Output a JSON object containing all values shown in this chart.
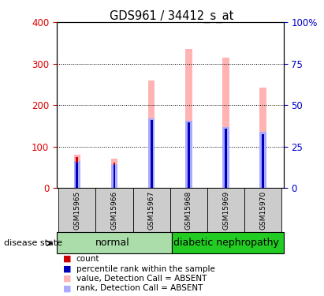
{
  "title": "GDS961 / 34412_s_at",
  "samples": [
    "GSM15965",
    "GSM15966",
    "GSM15967",
    "GSM15968",
    "GSM15969",
    "GSM15970"
  ],
  "value_absent": [
    80,
    70,
    260,
    335,
    315,
    243
  ],
  "rank_absent": [
    65,
    58,
    168,
    162,
    147,
    135
  ],
  "count_values": [
    75,
    62,
    3,
    5,
    5,
    5
  ],
  "percentile_values": [
    62,
    55,
    165,
    158,
    143,
    130
  ],
  "left_ylim": [
    0,
    400
  ],
  "right_ylim": [
    0,
    100
  ],
  "left_yticks": [
    0,
    100,
    200,
    300,
    400
  ],
  "right_yticks": [
    0,
    25,
    50,
    75,
    100
  ],
  "right_yticklabels": [
    "0",
    "25",
    "50",
    "75",
    "100%"
  ],
  "left_color": "#dd0000",
  "right_color": "#0000cc",
  "color_value_absent": "#ffb3b3",
  "color_rank_absent": "#aaaaff",
  "color_count": "#cc0000",
  "color_percentile": "#0000bb",
  "color_normal": "#aaddaa",
  "color_diabetic": "#22cc22",
  "color_sample_bg": "#cccccc",
  "grid_color": "#000000"
}
